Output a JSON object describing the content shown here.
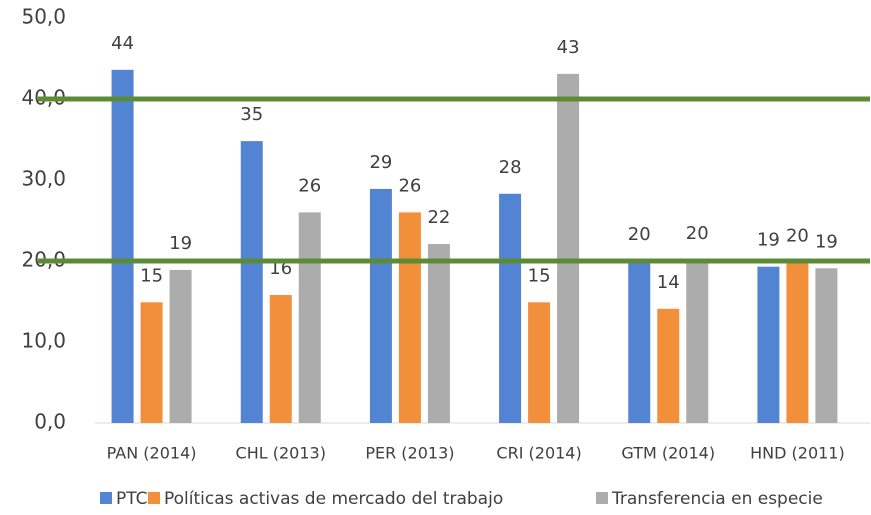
{
  "chart_data": {
    "type": "bar",
    "categories": [
      "PAN (2014)",
      "CHL (2013)",
      "PER (2013)",
      "CRI (2014)",
      "GTM (2014)",
      "HND (2011)"
    ],
    "series": [
      {
        "name": "PTC",
        "color": "#5384d3",
        "values": [
          43.6,
          34.8,
          28.9,
          28.3,
          20.0,
          19.3
        ],
        "value_labels": [
          "44",
          "35",
          "29",
          "28",
          "20",
          "19"
        ]
      },
      {
        "name": "Políticas activas de mercado del trabajo",
        "color": "#f28f3b",
        "values": [
          14.9,
          15.8,
          26.0,
          14.9,
          14.1,
          19.8
        ],
        "value_labels": [
          "15",
          "16",
          "26",
          "15",
          "14",
          "20"
        ]
      },
      {
        "name": "Transferencia en especie",
        "color": "#acacac",
        "values": [
          18.9,
          26.0,
          22.1,
          43.1,
          20.1,
          19.1
        ],
        "value_labels": [
          "19",
          "26",
          "22",
          "43",
          "20",
          "19"
        ]
      }
    ],
    "ylim": [
      0,
      50
    ],
    "yticks": [
      {
        "value": 0,
        "label": "0,0"
      },
      {
        "value": 10,
        "label": "10,0"
      },
      {
        "value": 20,
        "label": "20,0"
      },
      {
        "value": 30,
        "label": "30,0"
      },
      {
        "value": 40,
        "label": "40,0"
      },
      {
        "value": 50,
        "label": "50,0"
      }
    ],
    "grid": false,
    "reference_lines": [
      40,
      20
    ],
    "reference_color": "#5b8c35",
    "legend": "bottom"
  }
}
